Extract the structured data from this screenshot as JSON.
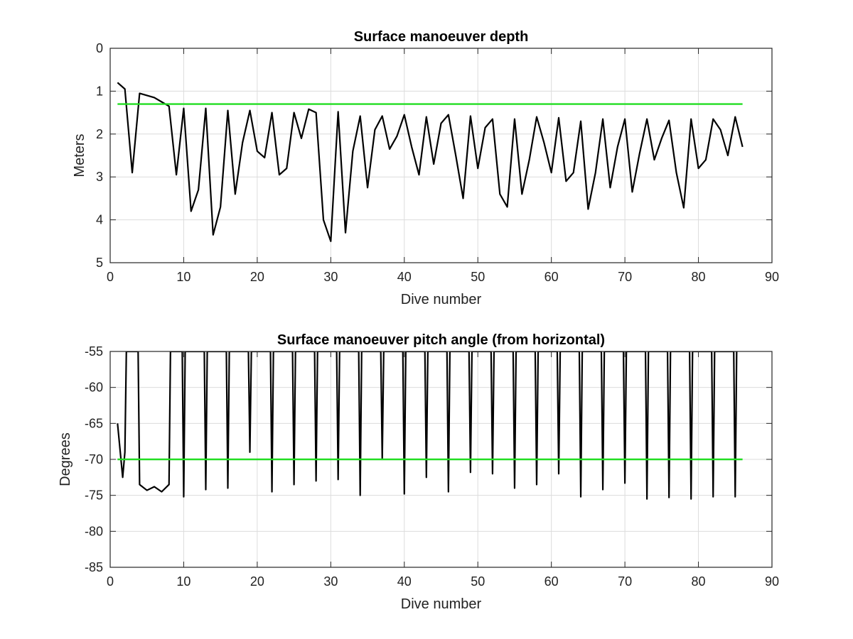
{
  "chart_data": [
    {
      "type": "line",
      "title": "Surface manoeuver depth",
      "xlabel": "Dive number",
      "ylabel": "Meters",
      "xlim": [
        0,
        90
      ],
      "ylim": [
        0,
        5
      ],
      "y_reversed": true,
      "grid": true,
      "xticks": [
        0,
        10,
        20,
        30,
        40,
        50,
        60,
        70,
        80,
        90
      ],
      "yticks": [
        0,
        1,
        2,
        3,
        4,
        5
      ],
      "series": [
        {
          "color": "#000000",
          "x": [
            1,
            2,
            3,
            4,
            5,
            6,
            7,
            8,
            9,
            10,
            11,
            12,
            13,
            14,
            15,
            16,
            17,
            18,
            19,
            20,
            21,
            22,
            23,
            24,
            25,
            26,
            27,
            28,
            29,
            30,
            31,
            32,
            33,
            34,
            35,
            36,
            37,
            38,
            39,
            40,
            41,
            42,
            43,
            44,
            45,
            46,
            47,
            48,
            49,
            50,
            51,
            52,
            53,
            54,
            55,
            56,
            57,
            58,
            59,
            60,
            61,
            62,
            63,
            64,
            65,
            66,
            67,
            68,
            69,
            70,
            71,
            72,
            73,
            74,
            75,
            76,
            77,
            78,
            79,
            80,
            81,
            82,
            83,
            84,
            85,
            86
          ],
          "y": [
            0.8,
            0.95,
            2.9,
            1.05,
            1.1,
            1.15,
            1.25,
            1.35,
            2.95,
            1.4,
            3.8,
            3.3,
            1.4,
            4.35,
            3.7,
            1.45,
            3.4,
            2.2,
            1.45,
            2.4,
            2.55,
            1.5,
            2.95,
            2.8,
            1.5,
            2.1,
            1.42,
            1.5,
            4.0,
            4.5,
            1.48,
            4.3,
            2.4,
            1.58,
            3.25,
            1.9,
            1.58,
            2.35,
            2.05,
            1.55,
            2.3,
            2.95,
            1.6,
            2.7,
            1.75,
            1.55,
            2.5,
            3.5,
            1.58,
            2.8,
            1.85,
            1.65,
            3.4,
            3.7,
            1.65,
            3.4,
            2.6,
            1.6,
            2.2,
            2.9,
            1.62,
            3.1,
            2.9,
            1.7,
            3.75,
            2.9,
            1.65,
            3.25,
            2.3,
            1.65,
            3.35,
            2.45,
            1.65,
            2.6,
            2.1,
            1.68,
            2.9,
            3.72,
            1.65,
            2.8,
            2.6,
            1.65,
            1.9,
            2.5,
            1.6,
            2.3
          ]
        },
        {
          "color": "#22dd22",
          "x": [
            1,
            86
          ],
          "y": [
            1.3,
            1.3
          ]
        }
      ]
    },
    {
      "type": "line",
      "title": "Surface manoeuver pitch angle (from horizontal)",
      "xlabel": "Dive number",
      "ylabel": "Degrees",
      "xlim": [
        0,
        90
      ],
      "ylim": [
        -85,
        -55
      ],
      "grid": true,
      "xticks": [
        0,
        10,
        20,
        30,
        40,
        50,
        60,
        70,
        80,
        90
      ],
      "yticks": [
        -55,
        -60,
        -65,
        -70,
        -75,
        -80,
        -85
      ],
      "series": [
        {
          "color": "#000000",
          "x": [
            1,
            1.7,
            2,
            2.2,
            3.8,
            4,
            5,
            6,
            7,
            8,
            8.2,
            9.8,
            10,
            10.2,
            12.8,
            13,
            13.2,
            15.8,
            16,
            16.2,
            18.8,
            19,
            19.2,
            21.8,
            22,
            22.2,
            24.8,
            25,
            25.2,
            27.8,
            28,
            28.2,
            30.8,
            31,
            31.2,
            33.8,
            34,
            34.2,
            36.8,
            37,
            37.2,
            39.8,
            40,
            40.2,
            42.8,
            43,
            43.2,
            45.8,
            46,
            46.2,
            48.8,
            49,
            49.2,
            51.8,
            52,
            52.2,
            54.8,
            55,
            55.2,
            57.8,
            58,
            58.2,
            60.8,
            61,
            61.2,
            63.8,
            64,
            64.2,
            66.8,
            67,
            67.2,
            69.8,
            70,
            70.2,
            72.8,
            73,
            73.2,
            75.8,
            76,
            76.2,
            78.8,
            79,
            79.2,
            81.8,
            82,
            82.2,
            84.8,
            85,
            85.2
          ],
          "y": [
            -65,
            -72.5,
            -69,
            -55,
            -55,
            -73.5,
            -74.3,
            -73.8,
            -74.5,
            -73.5,
            -55,
            -55,
            -75.2,
            -55,
            -55,
            -74.2,
            -55,
            -55,
            -74,
            -55,
            -55,
            -69,
            -55,
            -55,
            -74.5,
            -55,
            -55,
            -73.5,
            -55,
            -55,
            -73,
            -55,
            -55,
            -72.8,
            -55,
            -55,
            -75,
            -55,
            -55,
            -70,
            -55,
            -55,
            -74.8,
            -55,
            -55,
            -72.5,
            -55,
            -55,
            -74.5,
            -55,
            -55,
            -71.8,
            -55,
            -55,
            -72,
            -55,
            -55,
            -74,
            -55,
            -55,
            -73.5,
            -55,
            -55,
            -72,
            -55,
            -55,
            -75.2,
            -55,
            -55,
            -74.2,
            -55,
            -55,
            -73.3,
            -55,
            -55,
            -75.5,
            -55,
            -55,
            -75.3,
            -55,
            -55,
            -75.5,
            -55,
            -55,
            -75.2,
            -55,
            -55,
            -75.2,
            -55
          ]
        },
        {
          "color": "#22dd22",
          "x": [
            1,
            86
          ],
          "y": [
            -70,
            -70
          ]
        }
      ]
    }
  ]
}
